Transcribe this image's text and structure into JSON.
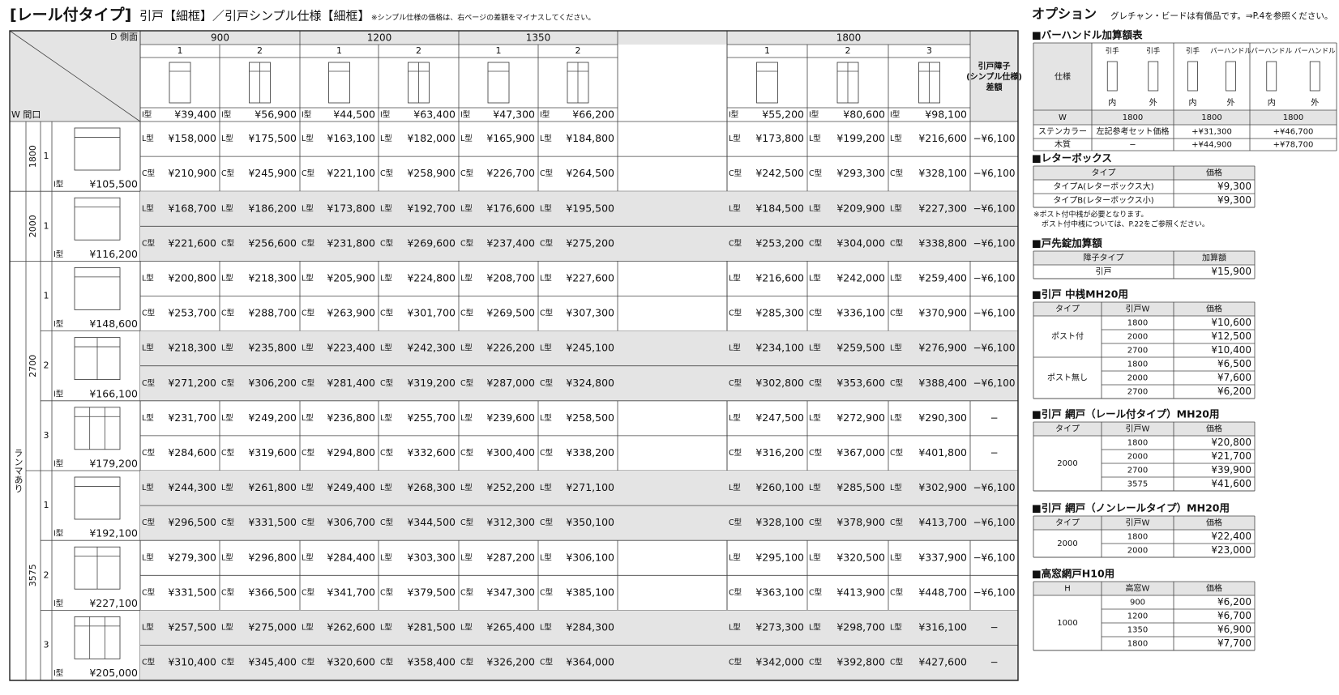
{
  "header": {
    "title": "[レール付タイプ]",
    "subtitle": "引戸【細框】／引戸シンプル仕様【細框】",
    "note": "※シンプル仕様の価格は、右ページの差額をマイナスしてください。"
  },
  "main_table": {
    "corner_top": "D 側面",
    "corner_bottom": "W 間口",
    "width_groups": [
      {
        "label": "900",
        "cols": [
          "1",
          "2"
        ]
      },
      {
        "label": "1200",
        "cols": [
          "1",
          "2"
        ]
      },
      {
        "label": "1350",
        "cols": [
          "1",
          "2"
        ]
      },
      {
        "label": "1800",
        "cols": [
          "1",
          "2",
          "3"
        ]
      }
    ],
    "diff_header": [
      "引戸障子",
      "(シンプル仕様)",
      "差額"
    ],
    "top_type": "I型",
    "top_prices": [
      "¥39,400",
      "¥56,900",
      "¥44,500",
      "¥63,400",
      "¥47,300",
      "¥66,200",
      "¥55,200",
      "¥80,600",
      "¥98,100"
    ],
    "ranma_label": "ランマあり",
    "height_groups": [
      {
        "height": "1800",
        "ranma": false,
        "items": [
          {
            "no": "1",
            "i_price": "¥105,500",
            "lines": [
              {
                "type": "L型",
                "prices": [
                  "¥158,000",
                  "¥175,500",
                  "¥163,100",
                  "¥182,000",
                  "¥165,900",
                  "¥184,800",
                  "¥173,800",
                  "¥199,200",
                  "¥216,600"
                ],
                "diff": "−¥6,100"
              },
              {
                "type": "C型",
                "prices": [
                  "¥210,900",
                  "¥245,900",
                  "¥221,100",
                  "¥258,900",
                  "¥226,700",
                  "¥264,500",
                  "¥242,500",
                  "¥293,300",
                  "¥328,100"
                ],
                "diff": "−¥6,100"
              }
            ]
          }
        ]
      },
      {
        "height": "2000",
        "ranma": false,
        "items": [
          {
            "no": "1",
            "i_price": "¥116,200",
            "lines": [
              {
                "type": "L型",
                "prices": [
                  "¥168,700",
                  "¥186,200",
                  "¥173,800",
                  "¥192,700",
                  "¥176,600",
                  "¥195,500",
                  "¥184,500",
                  "¥209,900",
                  "¥227,300"
                ],
                "diff": "−¥6,100"
              },
              {
                "type": "C型",
                "prices": [
                  "¥221,600",
                  "¥256,600",
                  "¥231,800",
                  "¥269,600",
                  "¥237,400",
                  "¥275,200",
                  "¥253,200",
                  "¥304,000",
                  "¥338,800"
                ],
                "diff": "−¥6,100"
              }
            ]
          }
        ]
      },
      {
        "height": "2700",
        "ranma": true,
        "items": [
          {
            "no": "1",
            "i_price": "¥148,600",
            "lines": [
              {
                "type": "L型",
                "prices": [
                  "¥200,800",
                  "¥218,300",
                  "¥205,900",
                  "¥224,800",
                  "¥208,700",
                  "¥227,600",
                  "¥216,600",
                  "¥242,000",
                  "¥259,400"
                ],
                "diff": "−¥6,100"
              },
              {
                "type": "C型",
                "prices": [
                  "¥253,700",
                  "¥288,700",
                  "¥263,900",
                  "¥301,700",
                  "¥269,500",
                  "¥307,300",
                  "¥285,300",
                  "¥336,100",
                  "¥370,900"
                ],
                "diff": "−¥6,100"
              }
            ]
          },
          {
            "no": "2",
            "i_price": "¥166,100",
            "lines": [
              {
                "type": "L型",
                "prices": [
                  "¥218,300",
                  "¥235,800",
                  "¥223,400",
                  "¥242,300",
                  "¥226,200",
                  "¥245,100",
                  "¥234,100",
                  "¥259,500",
                  "¥276,900"
                ],
                "diff": "−¥6,100"
              },
              {
                "type": "C型",
                "prices": [
                  "¥271,200",
                  "¥306,200",
                  "¥281,400",
                  "¥319,200",
                  "¥287,000",
                  "¥324,800",
                  "¥302,800",
                  "¥353,600",
                  "¥388,400"
                ],
                "diff": "−¥6,100"
              }
            ]
          },
          {
            "no": "3",
            "i_price": "¥179,200",
            "lines": [
              {
                "type": "L型",
                "prices": [
                  "¥231,700",
                  "¥249,200",
                  "¥236,800",
                  "¥255,700",
                  "¥239,600",
                  "¥258,500",
                  "¥247,500",
                  "¥272,900",
                  "¥290,300"
                ],
                "diff": "−"
              },
              {
                "type": "C型",
                "prices": [
                  "¥284,600",
                  "¥319,600",
                  "¥294,800",
                  "¥332,600",
                  "¥300,400",
                  "¥338,200",
                  "¥316,200",
                  "¥367,000",
                  "¥401,800"
                ],
                "diff": "−"
              }
            ]
          }
        ]
      },
      {
        "height": "3575",
        "ranma": true,
        "items": [
          {
            "no": "1",
            "i_price": "¥192,100",
            "lines": [
              {
                "type": "L型",
                "prices": [
                  "¥244,300",
                  "¥261,800",
                  "¥249,400",
                  "¥268,300",
                  "¥252,200",
                  "¥271,100",
                  "¥260,100",
                  "¥285,500",
                  "¥302,900"
                ],
                "diff": "−¥6,100"
              },
              {
                "type": "C型",
                "prices": [
                  "¥296,500",
                  "¥331,500",
                  "¥306,700",
                  "¥344,500",
                  "¥312,300",
                  "¥350,100",
                  "¥328,100",
                  "¥378,900",
                  "¥413,700"
                ],
                "diff": "−¥6,100"
              }
            ]
          },
          {
            "no": "2",
            "i_price": "¥227,100",
            "lines": [
              {
                "type": "L型",
                "prices": [
                  "¥279,300",
                  "¥296,800",
                  "¥284,400",
                  "¥303,300",
                  "¥287,200",
                  "¥306,100",
                  "¥295,100",
                  "¥320,500",
                  "¥337,900"
                ],
                "diff": "−¥6,100"
              },
              {
                "type": "C型",
                "prices": [
                  "¥331,500",
                  "¥366,500",
                  "¥341,700",
                  "¥379,500",
                  "¥347,300",
                  "¥385,100",
                  "¥363,100",
                  "¥413,900",
                  "¥448,700"
                ],
                "diff": "−¥6,100"
              }
            ]
          },
          {
            "no": "3",
            "i_price": "¥205,000",
            "lines": [
              {
                "type": "L型",
                "prices": [
                  "¥257,500",
                  "¥275,000",
                  "¥262,600",
                  "¥281,500",
                  "¥265,400",
                  "¥284,300",
                  "¥273,300",
                  "¥298,700",
                  "¥316,100"
                ],
                "diff": "−"
              },
              {
                "type": "C型",
                "prices": [
                  "¥310,400",
                  "¥345,400",
                  "¥320,600",
                  "¥358,400",
                  "¥326,200",
                  "¥364,000",
                  "¥342,000",
                  "¥392,800",
                  "¥427,600"
                ],
                "diff": "−"
              }
            ]
          }
        ]
      }
    ]
  },
  "options": {
    "title": "オプション",
    "note": "グレチャン・ビードは有償品です。⇒P.4を参照ください。",
    "bar_handle": {
      "title": "■バーハンドル加算額表",
      "spec": "仕様",
      "columns": [
        {
          "handles": [
            "引手",
            "引手"
          ],
          "sides": [
            "内",
            "外"
          ]
        },
        {
          "handles": [
            "引手",
            "バーハンドル"
          ],
          "sides": [
            "内",
            "外"
          ]
        },
        {
          "handles": [
            "バーハンドル",
            "バーハンドル"
          ],
          "sides": [
            "内",
            "外"
          ]
        }
      ],
      "rows": [
        [
          "W",
          "1800",
          "1800",
          "1800"
        ],
        [
          "ステンカラー",
          "左記参考セット価格",
          "+¥31,300",
          "+¥46,700"
        ],
        [
          "木質",
          "−",
          "+¥44,900",
          "+¥78,700"
        ]
      ]
    },
    "tables": [
      {
        "title": "■レターボックス",
        "headers": [
          "タイプ",
          "価格"
        ],
        "rows": [
          [
            "タイプA(レターボックス大)",
            "¥9,300"
          ],
          [
            "タイプB(レターボックス小)",
            "¥9,300"
          ]
        ],
        "notes": [
          "※ポスト付中桟が必要となります。",
          "ポスト付中桟については、P.22をご参照ください。"
        ]
      },
      {
        "title": "■戸先錠加算額",
        "headers": [
          "障子タイプ",
          "加算額"
        ],
        "rows": [
          [
            "引戸",
            "¥15,900"
          ]
        ]
      },
      {
        "title": "■引戸 中桟MH20用",
        "headers": [
          "タイプ",
          "引戸W",
          "価格"
        ],
        "groups": [
          {
            "label": "ポスト付",
            "rows": [
              [
                "1800",
                "¥10,600"
              ],
              [
                "2000",
                "¥12,500"
              ],
              [
                "2700",
                "¥10,400"
              ]
            ]
          },
          {
            "label": "ポスト無し",
            "rows": [
              [
                "1800",
                "¥6,500"
              ],
              [
                "2000",
                "¥7,600"
              ],
              [
                "2700",
                "¥6,200"
              ]
            ]
          }
        ]
      },
      {
        "title": "■引戸 網戸（レール付タイプ）MH20用",
        "headers": [
          "タイプ",
          "引戸W",
          "価格"
        ],
        "groups": [
          {
            "label": "2000",
            "rows": [
              [
                "1800",
                "¥20,800"
              ],
              [
                "2000",
                "¥21,700"
              ],
              [
                "2700",
                "¥39,900"
              ],
              [
                "3575",
                "¥41,600"
              ]
            ]
          }
        ]
      },
      {
        "title": "■引戸 網戸（ノンレールタイプ）MH20用",
        "headers": [
          "タイプ",
          "引戸W",
          "価格"
        ],
        "groups": [
          {
            "label": "2000",
            "rows": [
              [
                "1800",
                "¥22,400"
              ],
              [
                "2000",
                "¥23,000"
              ]
            ]
          }
        ]
      },
      {
        "title": "■高窓網戸H10用",
        "headers": [
          "H",
          "高窓W",
          "価格"
        ],
        "groups": [
          {
            "label": "1000",
            "rows": [
              [
                "900",
                "¥6,200"
              ],
              [
                "1200",
                "¥6,700"
              ],
              [
                "1350",
                "¥6,900"
              ],
              [
                "1800",
                "¥7,700"
              ]
            ]
          }
        ]
      }
    ]
  }
}
